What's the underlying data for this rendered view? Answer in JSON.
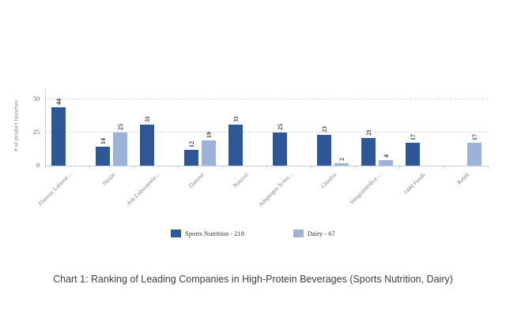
{
  "page": {
    "background": "#ffffff"
  },
  "caption": "Chart 1: Ranking of Leading Companies in High-Protein Beverages (Sports Nutrition, Dairy)",
  "chart_data": {
    "type": "bar",
    "title": "",
    "ylabel": "# of product launches",
    "xlabel": "",
    "yticks": [
      0,
      25,
      50
    ],
    "ylim": [
      0,
      55
    ],
    "grid": "horizontal-dashed",
    "legend_position": "bottom",
    "value_label_orientation": "vertical",
    "category_label_orientation": "45deg",
    "categories": [
      "Fitoway Laborat...",
      "Nestle",
      "Ads Laboratorio...",
      "Danone",
      "Nutrivo",
      "Adaptogen Scien...",
      "Glanbia",
      "Integralmedica ...",
      "1440 Foods",
      "Rebbl"
    ],
    "series": [
      {
        "name": "Sports Nutrition",
        "legend_label": "Sports Nutrition - 218",
        "total": 218,
        "color": "#2E5796",
        "values": [
          44,
          14,
          31,
          12,
          31,
          25,
          23,
          21,
          17,
          null
        ]
      },
      {
        "name": "Dairy",
        "legend_label": "Dairy - 67",
        "total": 67,
        "color": "#9EB1D9",
        "values": [
          null,
          25,
          null,
          19,
          null,
          null,
          2,
          4,
          null,
          17
        ]
      }
    ]
  }
}
